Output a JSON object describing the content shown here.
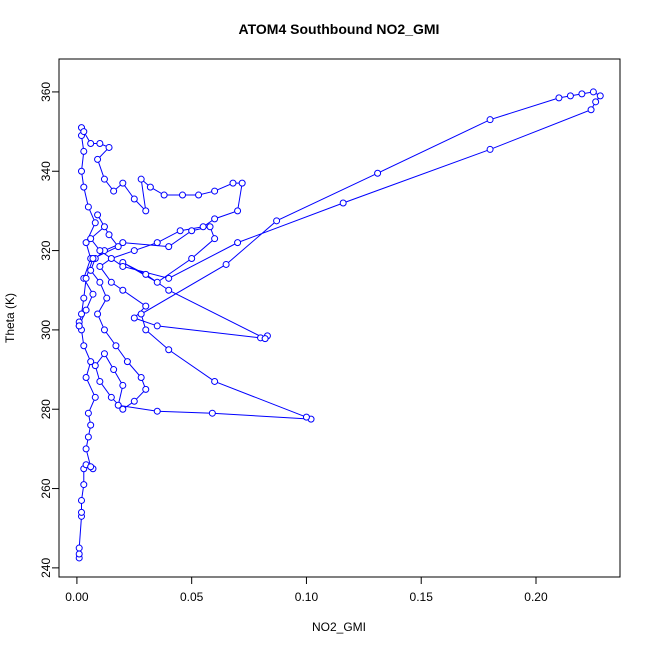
{
  "chart_data": {
    "type": "line",
    "markers": true,
    "title": "ATOM4 Southbound NO2_GMI",
    "x_label": "NO2_GMI",
    "y_label": "Theta (K)",
    "color": "#0000ff",
    "xlim": [
      -0.0078,
      0.2366
    ],
    "ylim": [
      237.7,
      368.3
    ],
    "xticks": [
      {
        "value": 0,
        "label": "0.00"
      },
      0.05,
      {
        "value": 0.1,
        "label": "0.10"
      },
      0.15,
      {
        "value": 0.2,
        "label": "0.20"
      }
    ],
    "yticks": [
      240,
      260,
      280,
      300,
      320,
      340,
      360
    ],
    "x": [
      0.001,
      0.001,
      0.001,
      0.002,
      0.002,
      0.002,
      0.003,
      0.003,
      0.004,
      0.007,
      0.006,
      0.004,
      0.005,
      0.006,
      0.005,
      0.008,
      0.004,
      0.006,
      0.003,
      0.002,
      0.001,
      0.001,
      0.004,
      0.007,
      0.003,
      0.006,
      0.004,
      0.008,
      0.005,
      0.003,
      0.002,
      0.003,
      0.002,
      0.002,
      0.003,
      0.006,
      0.01,
      0.014,
      0.009,
      0.012,
      0.016,
      0.02,
      0.025,
      0.03,
      0.028,
      0.032,
      0.038,
      0.046,
      0.053,
      0.06,
      0.068,
      0.072,
      0.07,
      0.06,
      0.055,
      0.045,
      0.035,
      0.025,
      0.015,
      0.01,
      0.015,
      0.02,
      0.03,
      0.025,
      0.035,
      0.08,
      0.083,
      0.082,
      0.04,
      0.03,
      0.02,
      0.035,
      0.05,
      0.06,
      0.058,
      0.05,
      0.04,
      0.02,
      0.012,
      0.008,
      0.006,
      0.01,
      0.013,
      0.009,
      0.012,
      0.017,
      0.022,
      0.028,
      0.03,
      0.025,
      0.02,
      0.015,
      0.01,
      0.008,
      0.012,
      0.016,
      0.02,
      0.018,
      0.035,
      0.059,
      0.102,
      0.1,
      0.06,
      0.04,
      0.03,
      0.028,
      0.065,
      0.087,
      0.131,
      0.18,
      0.21,
      0.215,
      0.22,
      0.225,
      0.228,
      0.226,
      0.224,
      0.18,
      0.116,
      0.07,
      0.04,
      0.02,
      0.01,
      0.006,
      0.012,
      0.009,
      0.014,
      0.018,
      0.007,
      0.004,
      0.003,
      0.002,
      0.001
    ],
    "y": [
      242.5,
      243.5,
      245,
      253,
      254,
      257,
      261,
      265,
      266,
      265,
      265.5,
      270,
      273,
      276,
      279,
      283,
      288,
      292,
      296,
      300,
      302,
      301,
      305,
      309,
      313,
      318,
      322,
      327,
      331,
      336,
      340,
      345,
      349,
      351,
      350,
      347,
      347,
      346,
      343,
      338,
      335,
      337,
      333,
      330,
      338,
      336,
      334,
      334,
      334,
      335,
      337,
      337,
      330,
      328,
      326,
      325,
      322,
      320,
      318,
      316,
      312,
      310,
      306,
      303,
      301,
      298,
      298.5,
      297.8,
      310,
      314,
      317,
      312,
      318,
      323,
      326,
      325,
      321,
      322,
      320,
      318,
      315,
      312,
      308,
      304,
      300,
      296,
      292,
      288,
      285,
      282,
      280,
      283,
      287,
      291,
      294,
      290,
      286,
      281,
      279.5,
      279,
      277.5,
      278,
      287,
      295,
      300,
      304,
      316.5,
      327.5,
      339.5,
      353,
      358.5,
      359,
      359.5,
      360,
      359,
      357.5,
      355.5,
      345.5,
      332,
      322,
      313,
      316,
      320,
      323,
      326,
      329,
      324,
      321,
      318,
      313,
      308,
      304,
      301
    ]
  }
}
